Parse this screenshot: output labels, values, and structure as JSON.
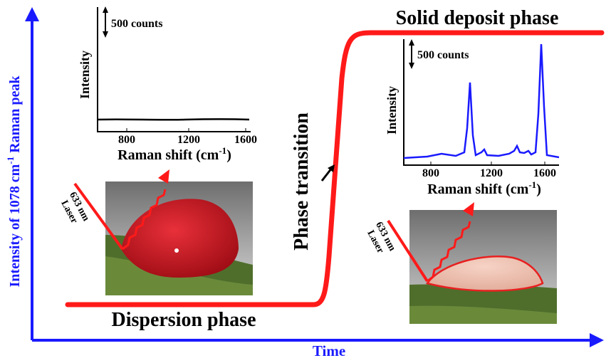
{
  "figure": {
    "y_axis_label": {
      "before": "Intensity of 1078 cm",
      "sup": "-1",
      "after": " Raman peak"
    },
    "x_axis_label": "Time",
    "dispersion_label": "Dispersion phase",
    "solid_label": "Solid deposit phase",
    "transition_label": "Phase transition",
    "left_inset": {
      "scale_bar": "500 counts",
      "y_label": "Intensity",
      "x_label": {
        "before": "Raman shift (cm",
        "sup": "-1",
        "after": ")"
      },
      "xticks": [
        800,
        1200,
        1600
      ]
    },
    "right_inset": {
      "scale_bar": "500 counts",
      "y_label": "Intensity",
      "x_label": {
        "before": "Raman shift (cm",
        "sup": "-1",
        "after": ")"
      },
      "xticks": [
        800,
        1200,
        1600
      ]
    },
    "left_laser": {
      "line1": "633 nm",
      "line2": "Laser"
    },
    "right_laser": {
      "line1": "633 nm",
      "line2": "Laser"
    }
  }
}
